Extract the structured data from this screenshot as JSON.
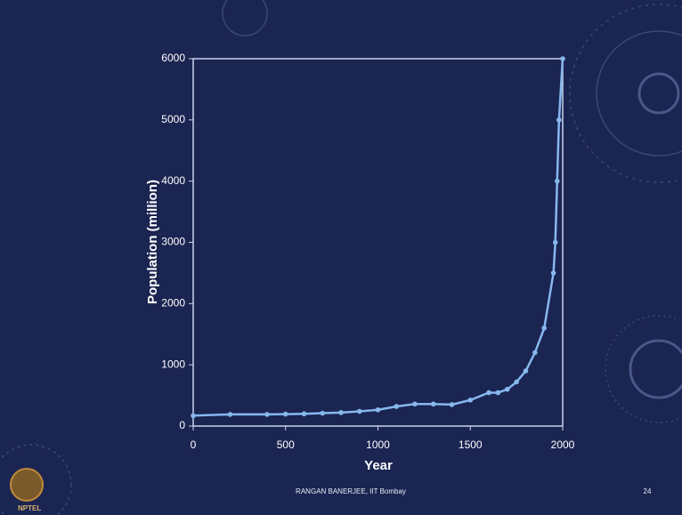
{
  "chart_data": {
    "type": "line",
    "xlabel": "Year",
    "ylabel": "Population (million)",
    "x": [
      0,
      200,
      400,
      500,
      600,
      700,
      800,
      900,
      1000,
      1100,
      1200,
      1300,
      1400,
      1500,
      1600,
      1650,
      1700,
      1750,
      1800,
      1850,
      1900,
      1950,
      1960,
      1970,
      1980,
      2000
    ],
    "series": [
      {
        "color": "#86b8ee",
        "values": [
          170,
          190,
          190,
          195,
          200,
          210,
          220,
          240,
          265,
          320,
          360,
          360,
          350,
          425,
          545,
          545,
          600,
          720,
          900,
          1200,
          1600,
          2500,
          3000,
          4000,
          5000,
          6000
        ]
      }
    ],
    "xlim": [
      0,
      2000
    ],
    "xticks": [
      0,
      500,
      1000,
      1500,
      2000
    ],
    "ylim": [
      0,
      6000
    ],
    "yticks": [
      0,
      1000,
      2000,
      3000,
      4000,
      5000,
      6000
    ]
  },
  "footer": {
    "author": "RANGAN BANERJEE,  IIT Bombay",
    "page": "24"
  },
  "logo": "NPTEL"
}
